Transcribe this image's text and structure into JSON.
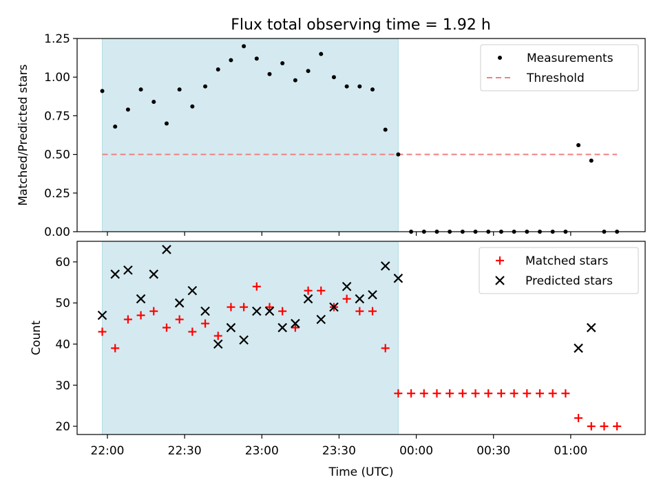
{
  "title": "Flux total observing time = 1.92 h",
  "colors": {
    "shade": "#d4eaf0",
    "threshold": "#f08080",
    "matched": "#ff0000",
    "predicted": "#000000",
    "measure": "#000000"
  },
  "chart_data": [
    {
      "type": "scatter",
      "ylabel": "Matched/Predicted stars",
      "ylim": [
        0,
        1.25
      ],
      "yticks": [
        "0.00",
        "0.25",
        "0.50",
        "0.75",
        "1.00",
        "1.25"
      ],
      "shaded_interval": [
        "21:58",
        "23:53"
      ],
      "legend_position": "top-right",
      "legend": [
        "Measurements",
        "Threshold"
      ],
      "series": [
        {
          "name": "Measurements",
          "points": [
            [
              "21:58",
              0.91
            ],
            [
              "22:03",
              0.68
            ],
            [
              "22:08",
              0.79
            ],
            [
              "22:13",
              0.92
            ],
            [
              "22:18",
              0.84
            ],
            [
              "22:23",
              0.7
            ],
            [
              "22:28",
              0.92
            ],
            [
              "22:33",
              0.81
            ],
            [
              "22:38",
              0.94
            ],
            [
              "22:43",
              1.05
            ],
            [
              "22:48",
              1.11
            ],
            [
              "22:53",
              1.2
            ],
            [
              "22:58",
              1.12
            ],
            [
              "23:03",
              1.02
            ],
            [
              "23:08",
              1.09
            ],
            [
              "23:13",
              0.98
            ],
            [
              "23:18",
              1.04
            ],
            [
              "23:23",
              1.15
            ],
            [
              "23:28",
              1.0
            ],
            [
              "23:33",
              0.94
            ],
            [
              "23:38",
              0.94
            ],
            [
              "23:43",
              0.92
            ],
            [
              "23:48",
              0.66
            ],
            [
              "23:53",
              0.5
            ],
            [
              "23:58",
              0
            ],
            [
              "00:03",
              0
            ],
            [
              "00:08",
              0
            ],
            [
              "00:13",
              0
            ],
            [
              "00:18",
              0
            ],
            [
              "00:23",
              0
            ],
            [
              "00:28",
              0
            ],
            [
              "00:33",
              0
            ],
            [
              "00:38",
              0
            ],
            [
              "00:43",
              0
            ],
            [
              "00:48",
              0
            ],
            [
              "00:53",
              0
            ],
            [
              "00:58",
              0
            ],
            [
              "01:03",
              0.56
            ],
            [
              "01:08",
              0.46
            ],
            [
              "01:13",
              0
            ],
            [
              "01:18",
              0
            ]
          ]
        },
        {
          "name": "Threshold",
          "type": "line",
          "y": 0.5,
          "x_range": [
            "21:58",
            "01:18"
          ]
        }
      ]
    },
    {
      "type": "scatter",
      "ylabel": "Count",
      "xlabel": "Time (UTC)",
      "ylim": [
        18,
        65
      ],
      "yticks": [
        "20",
        "30",
        "40",
        "50",
        "60"
      ],
      "xticks": [
        "22:00",
        "22:30",
        "23:00",
        "23:30",
        "00:00",
        "00:30",
        "01:00"
      ],
      "shaded_interval": [
        "21:58",
        "23:53"
      ],
      "legend_position": "top-right",
      "legend": [
        "Matched stars",
        "Predicted stars"
      ],
      "series": [
        {
          "name": "Matched stars",
          "points": [
            [
              "21:58",
              43
            ],
            [
              "22:03",
              39
            ],
            [
              "22:08",
              46
            ],
            [
              "22:13",
              47
            ],
            [
              "22:18",
              48
            ],
            [
              "22:23",
              44
            ],
            [
              "22:28",
              46
            ],
            [
              "22:33",
              43
            ],
            [
              "22:38",
              45
            ],
            [
              "22:43",
              42
            ],
            [
              "22:48",
              49
            ],
            [
              "22:53",
              49
            ],
            [
              "22:58",
              54
            ],
            [
              "23:03",
              49
            ],
            [
              "23:08",
              48
            ],
            [
              "23:13",
              44
            ],
            [
              "23:18",
              53
            ],
            [
              "23:23",
              53
            ],
            [
              "23:28",
              49
            ],
            [
              "23:33",
              51
            ],
            [
              "23:38",
              48
            ],
            [
              "23:43",
              48
            ],
            [
              "23:48",
              39
            ],
            [
              "23:53",
              28
            ],
            [
              "23:58",
              28
            ],
            [
              "00:03",
              28
            ],
            [
              "00:08",
              28
            ],
            [
              "00:13",
              28
            ],
            [
              "00:18",
              28
            ],
            [
              "00:23",
              28
            ],
            [
              "00:28",
              28
            ],
            [
              "00:33",
              28
            ],
            [
              "00:38",
              28
            ],
            [
              "00:43",
              28
            ],
            [
              "00:48",
              28
            ],
            [
              "00:53",
              28
            ],
            [
              "00:58",
              28
            ],
            [
              "01:03",
              22
            ],
            [
              "01:08",
              20
            ],
            [
              "01:13",
              20
            ],
            [
              "01:18",
              20
            ]
          ]
        },
        {
          "name": "Predicted stars",
          "points": [
            [
              "21:58",
              47
            ],
            [
              "22:03",
              57
            ],
            [
              "22:08",
              58
            ],
            [
              "22:13",
              51
            ],
            [
              "22:18",
              57
            ],
            [
              "22:23",
              63
            ],
            [
              "22:28",
              50
            ],
            [
              "22:33",
              53
            ],
            [
              "22:38",
              48
            ],
            [
              "22:43",
              40
            ],
            [
              "22:48",
              44
            ],
            [
              "22:53",
              41
            ],
            [
              "22:58",
              48
            ],
            [
              "23:03",
              48
            ],
            [
              "23:08",
              44
            ],
            [
              "23:13",
              45
            ],
            [
              "23:18",
              51
            ],
            [
              "23:23",
              46
            ],
            [
              "23:28",
              49
            ],
            [
              "23:33",
              54
            ],
            [
              "23:38",
              51
            ],
            [
              "23:43",
              52
            ],
            [
              "23:48",
              59
            ],
            [
              "23:53",
              56
            ],
            [
              "01:03",
              39
            ],
            [
              "01:08",
              44
            ]
          ]
        }
      ]
    }
  ]
}
